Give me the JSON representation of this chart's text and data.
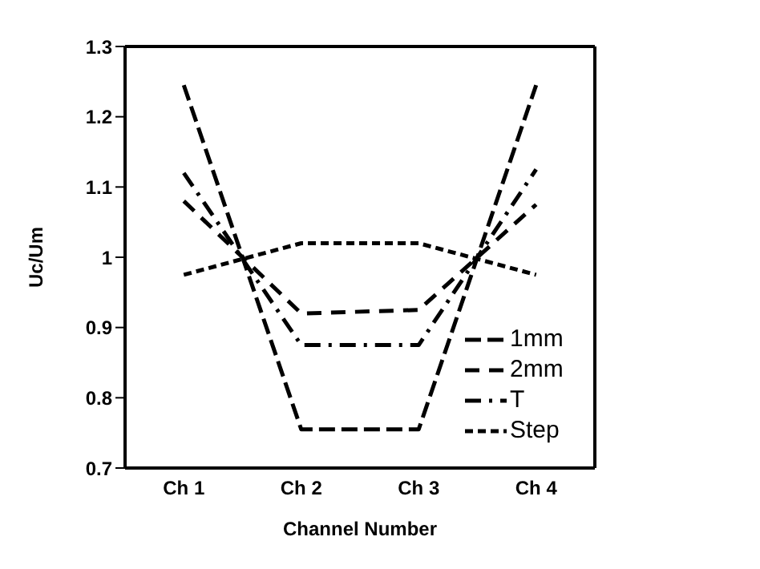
{
  "chart_data": {
    "type": "line",
    "xlabel": "Channel Number",
    "ylabel": "Uc/Um",
    "categories": [
      "Ch 1",
      "Ch 2",
      "Ch 3",
      "Ch 4"
    ],
    "series": [
      {
        "name": "1mm",
        "color": "#000000",
        "line_style": "longdash",
        "values": [
          1.245,
          0.755,
          0.755,
          1.245
        ]
      },
      {
        "name": "2mm",
        "color": "#000000",
        "line_style": "dashed",
        "values": [
          1.08,
          0.92,
          0.925,
          1.075
        ]
      },
      {
        "name": "T",
        "color": "#000000",
        "line_style": "dashdot",
        "values": [
          1.12,
          0.875,
          0.875,
          1.125
        ]
      },
      {
        "name": "Step",
        "color": "#000000",
        "line_style": "shortdash",
        "values": [
          0.975,
          1.02,
          1.02,
          0.975
        ]
      }
    ],
    "ylim": [
      0.7,
      1.3
    ],
    "yticks": [
      0.7,
      0.8,
      0.9,
      1,
      1.1,
      1.2,
      1.3
    ],
    "grid": false,
    "legend": "bottom right",
    "marker": "none"
  }
}
